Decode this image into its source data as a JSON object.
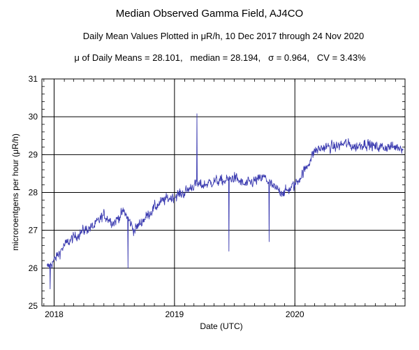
{
  "chart_data": {
    "type": "line",
    "title": "Median Observed Gamma Field, AJ4CO",
    "subtitle": "Daily Mean Values Plotted in μR/h, 10 Dec 2017 through 24 Nov 2020",
    "stats_line": "μ of Daily Means = 28.101,   median = 28.194,   σ = 0.964,   CV = 3.43%",
    "xlabel": "Date (UTC)",
    "ylabel": "microroentgens per hour (μR/h)",
    "xlim": [
      "2017-11-25",
      "2020-11-30"
    ],
    "ylim": [
      25,
      31
    ],
    "x_ticks": [
      "2018",
      "2019",
      "2020"
    ],
    "x_tick_dates": [
      "2018-01-01",
      "2019-01-01",
      "2020-01-01"
    ],
    "y_ticks": [
      "25",
      "26",
      "27",
      "28",
      "29",
      "30",
      "31"
    ],
    "grid": true,
    "line_color": "#3b3bb0",
    "series": [
      {
        "x": [
          "2017-12-10",
          "2018-01-01",
          "2018-02-01",
          "2018-03-01",
          "2018-04-01",
          "2018-05-01",
          "2018-06-01",
          "2018-07-01",
          "2018-08-01",
          "2018-09-01",
          "2018-10-01",
          "2018-11-01",
          "2018-12-01",
          "2019-01-01",
          "2019-02-01",
          "2019-03-01",
          "2019-04-01",
          "2019-05-01",
          "2019-06-01",
          "2019-07-01",
          "2019-08-01",
          "2019-09-01",
          "2019-10-01",
          "2019-11-01",
          "2019-12-01",
          "2020-01-01",
          "2020-02-01",
          "2020-03-01",
          "2020-04-01",
          "2020-05-01",
          "2020-06-01",
          "2020-07-01",
          "2020-08-01",
          "2020-09-01",
          "2020-10-01",
          "2020-11-24"
        ],
        "values": [
          26.0,
          26.2,
          26.6,
          26.8,
          27.0,
          27.1,
          27.4,
          27.2,
          27.5,
          27.0,
          27.3,
          27.6,
          27.8,
          27.9,
          28.0,
          28.2,
          28.2,
          28.3,
          28.3,
          28.4,
          28.2,
          28.3,
          28.4,
          28.1,
          28.0,
          28.2,
          28.6,
          29.1,
          29.2,
          29.2,
          29.3,
          29.2,
          29.3,
          29.2,
          29.2,
          29.2
        ]
      }
    ],
    "notable_points": [
      {
        "x": "2017-12-20",
        "y": 25.45
      },
      {
        "x": "2018-08-13",
        "y": 26.0
      },
      {
        "x": "2019-03-10",
        "y": 30.08
      },
      {
        "x": "2019-06-15",
        "y": 26.45
      },
      {
        "x": "2019-10-15",
        "y": 26.7
      }
    ]
  }
}
